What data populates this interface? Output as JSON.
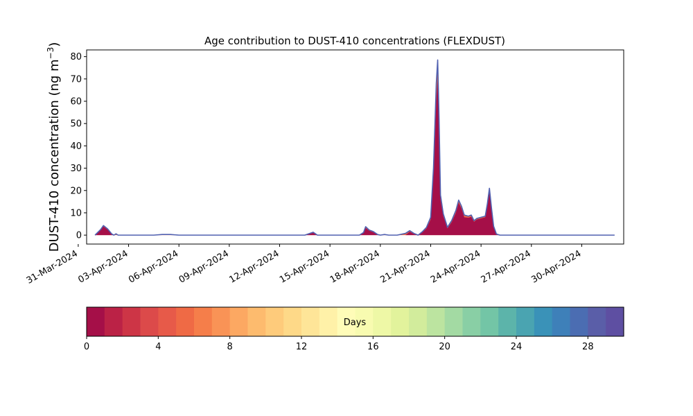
{
  "chart_data": {
    "type": "area",
    "title": "Age contribution to DUST-410 concentrations (FLEXDUST)",
    "ylabel": "DUST-410 concentration (ng m",
    "ylabel_sup": "−3",
    "ylabel_close": ")",
    "ylim": [
      -4,
      83
    ],
    "yticks": [
      0,
      10,
      20,
      30,
      40,
      50,
      60,
      70,
      80
    ],
    "xlim": [
      "2024-03-31T12:00",
      "2024-05-02T12:00"
    ],
    "xticks": [
      {
        "date": "2024-03-31",
        "label": "31-Mar-2024"
      },
      {
        "date": "2024-04-03",
        "label": "03-Apr-2024"
      },
      {
        "date": "2024-04-06",
        "label": "06-Apr-2024"
      },
      {
        "date": "2024-04-09",
        "label": "09-Apr-2024"
      },
      {
        "date": "2024-04-12",
        "label": "12-Apr-2024"
      },
      {
        "date": "2024-04-15",
        "label": "15-Apr-2024"
      },
      {
        "date": "2024-04-18",
        "label": "18-Apr-2024"
      },
      {
        "date": "2024-04-21",
        "label": "21-Apr-2024"
      },
      {
        "date": "2024-04-24",
        "label": "24-Apr-2024"
      },
      {
        "date": "2024-04-27",
        "label": "27-Apr-2024"
      },
      {
        "date": "2024-04-30",
        "label": "30-Apr-2024"
      }
    ],
    "series": [
      {
        "total": [
          [
            "2024-04-01T00:00",
            0
          ],
          [
            "2024-04-01T08:00",
            2.5
          ],
          [
            "2024-04-01T12:00",
            4.3
          ],
          [
            "2024-04-01T18:00",
            2.8
          ],
          [
            "2024-04-02T00:00",
            0.5
          ],
          [
            "2024-04-02T03:00",
            0
          ],
          [
            "2024-04-02T06:00",
            0.6
          ],
          [
            "2024-04-02T09:00",
            0
          ],
          [
            "2024-04-04T12:00",
            0
          ],
          [
            "2024-04-05T00:00",
            0.3
          ],
          [
            "2024-04-05T12:00",
            0.3
          ],
          [
            "2024-04-06T00:00",
            0
          ],
          [
            "2024-04-13T12:00",
            0
          ],
          [
            "2024-04-14T00:00",
            1.3
          ],
          [
            "2024-04-14T06:00",
            0
          ],
          [
            "2024-04-16T18:00",
            0
          ],
          [
            "2024-04-17T00:00",
            1.2
          ],
          [
            "2024-04-17T03:00",
            3.8
          ],
          [
            "2024-04-17T08:00",
            2.3
          ],
          [
            "2024-04-17T14:00",
            1.6
          ],
          [
            "2024-04-17T20:00",
            0.3
          ],
          [
            "2024-04-18T00:00",
            0
          ],
          [
            "2024-04-18T06:00",
            0.3
          ],
          [
            "2024-04-18T12:00",
            0
          ],
          [
            "2024-04-19T00:00",
            0
          ],
          [
            "2024-04-19T12:00",
            0.8
          ],
          [
            "2024-04-19T18:00",
            2.0
          ],
          [
            "2024-04-20T00:00",
            0.8
          ],
          [
            "2024-04-20T06:00",
            0
          ],
          [
            "2024-04-20T12:00",
            1.5
          ],
          [
            "2024-04-20T18:00",
            3.5
          ],
          [
            "2024-04-21T00:00",
            8
          ],
          [
            "2024-04-21T04:00",
            30
          ],
          [
            "2024-04-21T08:00",
            68
          ],
          [
            "2024-04-21T10:00",
            78.5
          ],
          [
            "2024-04-21T12:00",
            52
          ],
          [
            "2024-04-21T14:00",
            18
          ],
          [
            "2024-04-21T18:00",
            9.5
          ],
          [
            "2024-04-22T00:00",
            3.5
          ],
          [
            "2024-04-22T06:00",
            6.5
          ],
          [
            "2024-04-22T12:00",
            11
          ],
          [
            "2024-04-22T16:00",
            15.7
          ],
          [
            "2024-04-22T20:00",
            13
          ],
          [
            "2024-04-23T00:00",
            9
          ],
          [
            "2024-04-23T06:00",
            8.5
          ],
          [
            "2024-04-23T10:00",
            9
          ],
          [
            "2024-04-23T14:00",
            6.5
          ],
          [
            "2024-04-23T18:00",
            7.5
          ],
          [
            "2024-04-24T00:00",
            8
          ],
          [
            "2024-04-24T06:00",
            8.5
          ],
          [
            "2024-04-24T09:00",
            14
          ],
          [
            "2024-04-24T12:00",
            21
          ],
          [
            "2024-04-24T15:00",
            12
          ],
          [
            "2024-04-24T18:00",
            4
          ],
          [
            "2024-04-24T22:00",
            0.5
          ],
          [
            "2024-04-25T03:00",
            0
          ],
          [
            "2024-05-01T23:00",
            0
          ]
        ],
        "age_0_1": [
          [
            "2024-04-01T00:00",
            0
          ],
          [
            "2024-04-01T08:00",
            2.2
          ],
          [
            "2024-04-01T12:00",
            3.9
          ],
          [
            "2024-04-01T18:00",
            2.5
          ],
          [
            "2024-04-02T00:00",
            0.3
          ],
          [
            "2024-04-02T03:00",
            0
          ],
          [
            "2024-04-13T12:00",
            0
          ],
          [
            "2024-04-14T00:00",
            1.0
          ],
          [
            "2024-04-14T06:00",
            0
          ],
          [
            "2024-04-16T18:00",
            0
          ],
          [
            "2024-04-17T00:00",
            1.0
          ],
          [
            "2024-04-17T03:00",
            3.2
          ],
          [
            "2024-04-17T08:00",
            2.0
          ],
          [
            "2024-04-17T14:00",
            1.3
          ],
          [
            "2024-04-17T20:00",
            0.2
          ],
          [
            "2024-04-18T00:00",
            0
          ],
          [
            "2024-04-19T12:00",
            0
          ],
          [
            "2024-04-19T18:00",
            1.5
          ],
          [
            "2024-04-20T00:00",
            0.5
          ],
          [
            "2024-04-20T06:00",
            0
          ],
          [
            "2024-04-20T12:00",
            1.2
          ],
          [
            "2024-04-20T18:00",
            3.0
          ],
          [
            "2024-04-21T00:00",
            7
          ],
          [
            "2024-04-21T04:00",
            27
          ],
          [
            "2024-04-21T08:00",
            60
          ],
          [
            "2024-04-21T10:00",
            70
          ],
          [
            "2024-04-21T12:00",
            46
          ],
          [
            "2024-04-21T14:00",
            16
          ],
          [
            "2024-04-21T18:00",
            8.5
          ],
          [
            "2024-04-22T00:00",
            3.0
          ],
          [
            "2024-04-22T06:00",
            5.8
          ],
          [
            "2024-04-22T12:00",
            10
          ],
          [
            "2024-04-22T16:00",
            14.5
          ],
          [
            "2024-04-22T20:00",
            12
          ],
          [
            "2024-04-23T00:00",
            8
          ],
          [
            "2024-04-23T06:00",
            7.8
          ],
          [
            "2024-04-23T10:00",
            8.2
          ],
          [
            "2024-04-23T14:00",
            6
          ],
          [
            "2024-04-23T18:00",
            7
          ],
          [
            "2024-04-24T00:00",
            7.5
          ],
          [
            "2024-04-24T06:00",
            8
          ],
          [
            "2024-04-24T09:00",
            13
          ],
          [
            "2024-04-24T12:00",
            19.5
          ],
          [
            "2024-04-24T15:00",
            11
          ],
          [
            "2024-04-24T18:00",
            3.5
          ],
          [
            "2024-04-24T22:00",
            0.3
          ],
          [
            "2024-04-25T03:00",
            0
          ],
          [
            "2024-05-01T23:00",
            0
          ]
        ]
      }
    ],
    "colorbar": {
      "label": "Days",
      "min": 0,
      "max": 30,
      "ticks": [
        0,
        4,
        8,
        12,
        16,
        20,
        24,
        28
      ],
      "colors": [
        "#a50f48",
        "#bb2246",
        "#cd3546",
        "#dc4a4a",
        "#e75a49",
        "#ef6a45",
        "#f57e4a",
        "#f99356",
        "#fca862",
        "#fdbb6e",
        "#fecb7b",
        "#fed988",
        "#fee598",
        "#fff1a8",
        "#fffcb8",
        "#f8fbb0",
        "#eef8a6",
        "#e2f39c",
        "#d2ec9c",
        "#bce4a0",
        "#a3daa3",
        "#89cfa5",
        "#73c5a6",
        "#5cb4aa",
        "#4aa4b1",
        "#3a92b8",
        "#3e80b9",
        "#4b6db2",
        "#5a5ea8",
        "#5e4fa2"
      ]
    },
    "colors": {
      "outline": "#5060b0",
      "fill_recent": "#a50f48",
      "fill_older": "#ef6a45"
    }
  }
}
